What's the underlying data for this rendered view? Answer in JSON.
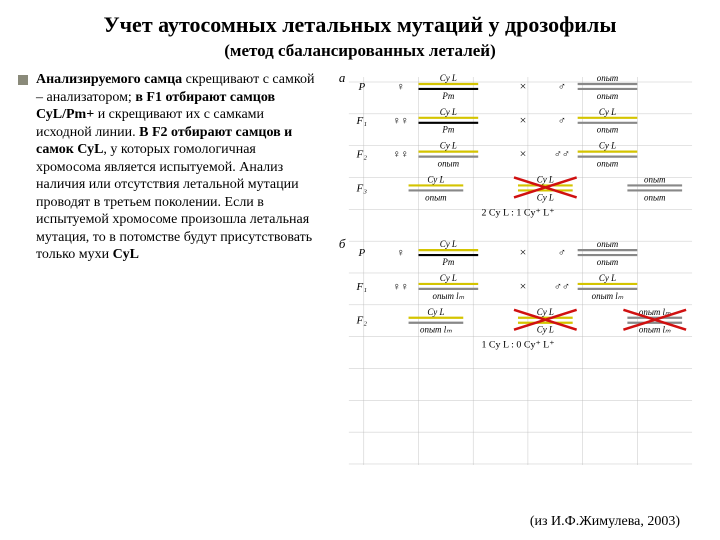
{
  "title": "Учет аутосомных летальных мутаций у дрозофилы",
  "subtitle": "(метод сбалансированных леталей)",
  "bullet_lead": "Анализируемого самца",
  "body_html": "скрещивают с самкой – анализатором; <b>в F1 отбирают самцов СуL/Pm+</b> и скрещивают их с самками исходной линии. <b>В F2 отбирают самцов и самок СуL</b>, у которых гомологичная хромосома является испытуемой. Анализ наличия или отсутствия летальной мутации проводят в третьем поколении. Если в испытуемой хромосоме произошла летальная мутация, то в потомстве будут присутствовать только мухи <b>CyL</b>",
  "citation": "(из И.Ф.Жимулева, 2003)",
  "colors": {
    "chrom_cy": "#d4c400",
    "chrom_pm": "#000000",
    "chrom_test": "#888888",
    "grid": "#b8b8b8",
    "cross_red": "#d01010",
    "text": "#000000"
  },
  "diagram": {
    "panel_a": {
      "label": "а",
      "rows": [
        {
          "gen": "P",
          "left_f": {
            "top": "Cy L",
            "bot": "Pm",
            "c1": "cy",
            "c2": "pm"
          },
          "right_m": {
            "top": "опыт",
            "bot": "опыт",
            "c1": "test",
            "c2": "test"
          }
        },
        {
          "gen": "F₁",
          "left_ff": {
            "top": "Cy L",
            "bot": "Pm",
            "c1": "cy",
            "c2": "pm"
          },
          "right_m": {
            "top": "Cy L",
            "bot": "опыт",
            "c1": "cy",
            "c2": "test"
          }
        },
        {
          "gen": "F₂",
          "left_ff": {
            "top": "Cy L",
            "bot": "опыт",
            "c1": "cy",
            "c2": "test"
          },
          "right_mm": {
            "top": "Cy L",
            "bot": "опыт",
            "c1": "cy",
            "c2": "test"
          }
        },
        {
          "gen": "F₃",
          "triple": [
            {
              "top": "Cy L",
              "bot": "опыт",
              "c1": "cy",
              "c2": "test"
            },
            {
              "top": "Cy L",
              "bot": "Cy L",
              "c1": "cy",
              "c2": "cy",
              "cross": true
            },
            {
              "top": "опыт",
              "bot": "опыт",
              "c1": "test",
              "c2": "test"
            }
          ],
          "ratio": "2 Cy L  :  1 Cy⁺ L⁺"
        }
      ]
    },
    "panel_b": {
      "label": "б",
      "rows": [
        {
          "gen": "P",
          "left_f": {
            "top": "Cy L",
            "bot": "Pm",
            "c1": "cy",
            "c2": "pm"
          },
          "right_m": {
            "top": "опыт",
            "bot": "опыт",
            "c1": "test",
            "c2": "test"
          }
        },
        {
          "gen": "F₁",
          "left_ff": {
            "top": "Cy L",
            "bot": "опыт lₘ",
            "c1": "cy",
            "c2": "test"
          },
          "right_mm": {
            "top": "Cy L",
            "bot": "опыт lₘ",
            "c1": "cy",
            "c2": "test"
          }
        },
        {
          "gen": "F₂",
          "triple": [
            {
              "top": "Cy L",
              "bot": "опыт lₘ",
              "c1": "cy",
              "c2": "test"
            },
            {
              "top": "Cy L",
              "bot": "Cy L",
              "c1": "cy",
              "c2": "cy",
              "cross": true
            },
            {
              "top": "опыт lₘ",
              "bot": "опыт lₘ",
              "c1": "test",
              "c2": "test",
              "cross": true
            }
          ],
          "ratio": "1 Cy L  :  0 Cy⁺ L⁺"
        }
      ]
    }
  }
}
